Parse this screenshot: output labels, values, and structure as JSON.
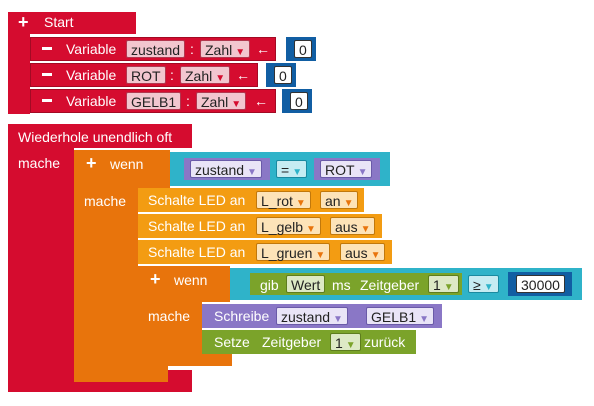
{
  "start": {
    "label": "Start",
    "variables": [
      {
        "keyword": "Variable",
        "name": "zustand",
        "colon": ":",
        "type": "Zahl",
        "arrow": "←",
        "value": "0"
      },
      {
        "keyword": "Variable",
        "name": "ROT",
        "colon": ":",
        "type": "Zahl",
        "arrow": "←",
        "value": "0"
      },
      {
        "keyword": "Variable",
        "name": "GELB1",
        "colon": ":",
        "type": "Zahl",
        "arrow": "←",
        "value": "0"
      }
    ]
  },
  "loop": {
    "label": "Wiederhole unendlich oft",
    "do_label": "mache"
  },
  "if1": {
    "label": "wenn",
    "do_label": "mache",
    "cond_left": "zustand",
    "cond_op": "=",
    "cond_right": "ROT"
  },
  "leds": [
    {
      "label": "Schalte LED an",
      "led": "L_rot",
      "state": "an"
    },
    {
      "label": "Schalte LED an",
      "led": "L_gelb",
      "state": "aus"
    },
    {
      "label": "Schalte LED an",
      "led": "L_gruen",
      "state": "aus"
    }
  ],
  "if2": {
    "label": "wenn",
    "do_label": "mache",
    "cond_get": "gib",
    "cond_field": "Wert",
    "cond_ms": "ms",
    "cond_timer": "Zeitgeber",
    "cond_timer_num": "1",
    "cond_op": "≥",
    "cond_value": "30000"
  },
  "write": {
    "label": "Schreibe",
    "var": "zustand",
    "value": "GELB1"
  },
  "reset": {
    "label": "Setze",
    "timer": "Zeitgeber",
    "num": "1",
    "suffix": "zurück"
  },
  "icons": {
    "plus": "+",
    "minus": "–",
    "dropdown": "▼"
  }
}
